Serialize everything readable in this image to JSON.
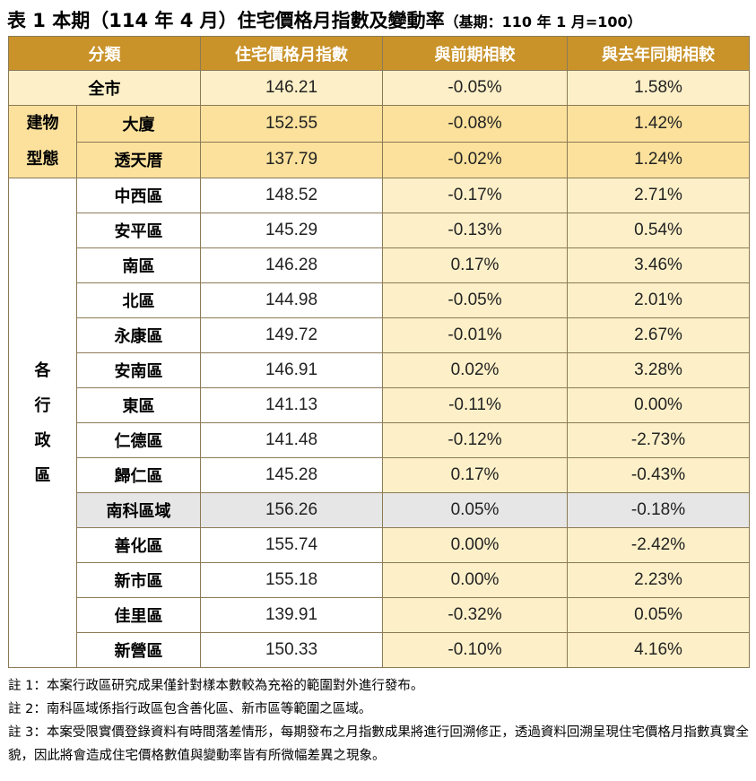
{
  "title": {
    "main": "表 1 本期（114 年 4 月）住宅價格月指數及變動率",
    "base": "（基期：110 年 1 月=100）"
  },
  "headers": [
    "分類",
    "住宅價格月指數",
    "與前期相較",
    "與去年同期相較"
  ],
  "all_city": {
    "name": "全市",
    "index": "146.21",
    "mom": "-0.05%",
    "yoy": "1.58%"
  },
  "building_type": {
    "label_lines": [
      "建物",
      "型態"
    ],
    "rows": [
      {
        "name": "大廈",
        "index": "152.55",
        "mom": "-0.08%",
        "yoy": "1.42%"
      },
      {
        "name": "透天厝",
        "index": "137.79",
        "mom": "-0.02%",
        "yoy": "1.24%"
      }
    ]
  },
  "districts": {
    "label_chars": [
      "各",
      "行",
      "政",
      "區"
    ],
    "rows": [
      {
        "name": "中西區",
        "index": "148.52",
        "mom": "-0.17%",
        "yoy": "2.71%"
      },
      {
        "name": "安平區",
        "index": "145.29",
        "mom": "-0.13%",
        "yoy": "0.54%"
      },
      {
        "name": "南區",
        "index": "146.28",
        "mom": "0.17%",
        "yoy": "3.46%"
      },
      {
        "name": "北區",
        "index": "144.98",
        "mom": "-0.05%",
        "yoy": "2.01%"
      },
      {
        "name": "永康區",
        "index": "149.72",
        "mom": "-0.01%",
        "yoy": "2.67%"
      },
      {
        "name": "安南區",
        "index": "146.91",
        "mom": "0.02%",
        "yoy": "3.28%"
      },
      {
        "name": "東區",
        "index": "141.13",
        "mom": "-0.11%",
        "yoy": "0.00%"
      },
      {
        "name": "仁德區",
        "index": "141.48",
        "mom": "-0.12%",
        "yoy": "-2.73%"
      },
      {
        "name": "歸仁區",
        "index": "145.28",
        "mom": "0.17%",
        "yoy": "-0.43%"
      },
      {
        "name": "南科區域",
        "index": "156.26",
        "mom": "0.05%",
        "yoy": "-0.18%"
      },
      {
        "name": "善化區",
        "index": "155.74",
        "mom": "0.00%",
        "yoy": "-2.42%"
      },
      {
        "name": "新市區",
        "index": "155.18",
        "mom": "0.00%",
        "yoy": "2.23%"
      },
      {
        "name": "佳里區",
        "index": "139.91",
        "mom": "-0.32%",
        "yoy": "0.05%"
      },
      {
        "name": "新營區",
        "index": "150.33",
        "mom": "-0.10%",
        "yoy": "4.16%"
      }
    ]
  },
  "notes": [
    "註 1：本案行政區研究成果僅針對樣本數較為充裕的範圍對外進行發布。",
    "註 2：南科區域係指行政區包含善化區、新市區等範圍之區域。",
    "註 3：本案受限實價登錄資料有時間落差情形，每期發布之月指數成果將進行回溯修正，透過資料回溯呈現住宅價格月指數真實全貌，因此將會造成住宅價格數值與變動率皆有所微幅差異之現象。"
  ],
  "colors": {
    "header_bg": "#c9932a",
    "light": "#fdf0c8",
    "building": "#fbe19c",
    "highlight": "#e6e6e6"
  }
}
